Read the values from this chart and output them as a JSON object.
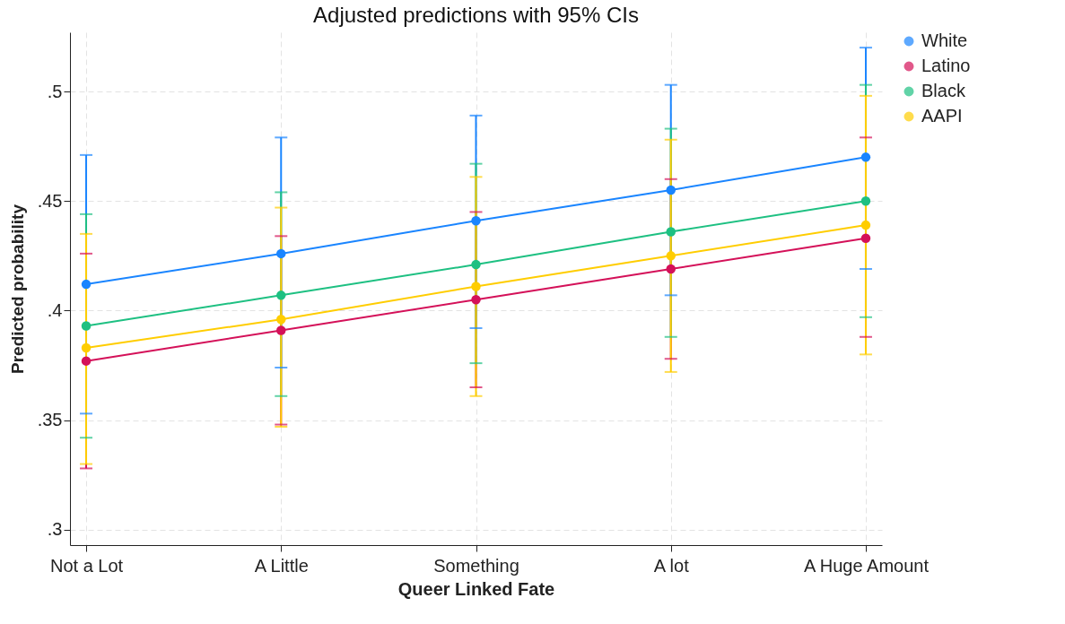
{
  "chart_data": {
    "type": "line",
    "title": "Adjusted predictions with 95% CIs",
    "xlabel": "Queer Linked Fate",
    "ylabel": "Predicted probability",
    "categories": [
      "Not a Lot",
      "A Little",
      "Something",
      "A lot",
      "A Huge Amount"
    ],
    "series": [
      {
        "name": "White",
        "color": "#1a85ff",
        "values": [
          0.412,
          0.426,
          0.441,
          0.455,
          0.47
        ],
        "errors": [
          [
            0.353,
            0.471
          ],
          [
            0.374,
            0.479
          ],
          [
            0.392,
            0.489
          ],
          [
            0.407,
            0.503
          ],
          [
            0.419,
            0.52
          ]
        ]
      },
      {
        "name": "Latino",
        "color": "#d41159",
        "values": [
          0.377,
          0.391,
          0.405,
          0.419,
          0.433
        ],
        "errors": [
          [
            0.328,
            0.426
          ],
          [
            0.348,
            0.434
          ],
          [
            0.365,
            0.445
          ],
          [
            0.378,
            0.46
          ],
          [
            0.388,
            0.479
          ]
        ]
      },
      {
        "name": "Black",
        "color": "#1ec082",
        "values": [
          0.393,
          0.407,
          0.421,
          0.436,
          0.45
        ],
        "errors": [
          [
            0.342,
            0.444
          ],
          [
            0.361,
            0.454
          ],
          [
            0.376,
            0.467
          ],
          [
            0.388,
            0.483
          ],
          [
            0.397,
            0.503
          ]
        ]
      },
      {
        "name": "AAPI",
        "color": "#ffcd00",
        "values": [
          0.383,
          0.396,
          0.411,
          0.425,
          0.439
        ],
        "errors": [
          [
            0.33,
            0.435
          ],
          [
            0.347,
            0.447
          ],
          [
            0.361,
            0.461
          ],
          [
            0.372,
            0.478
          ],
          [
            0.38,
            0.498
          ]
        ]
      }
    ],
    "ylim": [
      0.293,
      0.527
    ],
    "yticks": [
      {
        "value": 0.3,
        "label": ".3"
      },
      {
        "value": 0.35,
        "label": ".35"
      },
      {
        "value": 0.4,
        "label": ".4"
      },
      {
        "value": 0.45,
        "label": ".45"
      },
      {
        "value": 0.5,
        "label": ".5"
      }
    ],
    "grid": true,
    "legend": "right",
    "marker": "circle",
    "line_style": "solid"
  }
}
